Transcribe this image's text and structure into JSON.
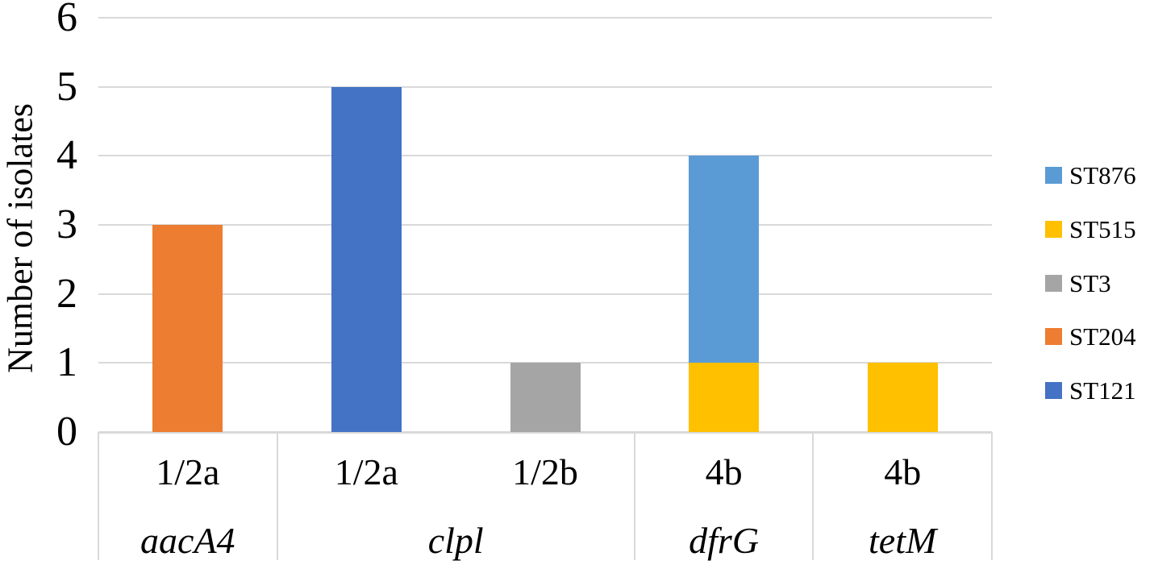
{
  "chart_data": {
    "type": "bar",
    "stacked": true,
    "title": "",
    "xlabel": "",
    "ylabel": "Number of isolates",
    "ylim": [
      0,
      6
    ],
    "yticks": [
      "0",
      "1",
      "2",
      "3",
      "4",
      "5",
      "6"
    ],
    "grid": "horizontal",
    "gridline_color": "#D9D9D9",
    "legend_position": "right",
    "categories_level1_serotype": [
      "1/2a",
      "1/2a",
      "1/2b",
      "4b",
      "4b"
    ],
    "categories_level2_gene": [
      "aacA4",
      "clpl",
      "clpl",
      "dfrG",
      "tetM"
    ],
    "groups": [
      {
        "serotype": "1/2a",
        "gene": "aacA4",
        "segments": [
          {
            "series": "ST204",
            "value": 3
          }
        ],
        "total": 3
      },
      {
        "serotype": "1/2a",
        "gene": "clpl",
        "segments": [
          {
            "series": "ST121",
            "value": 5
          }
        ],
        "total": 5
      },
      {
        "serotype": "1/2b",
        "gene": "clpl",
        "segments": [
          {
            "series": "ST3",
            "value": 1
          }
        ],
        "total": 1
      },
      {
        "serotype": "4b",
        "gene": "dfrG",
        "segments": [
          {
            "series": "ST515",
            "value": 1
          },
          {
            "series": "ST876",
            "value": 3
          }
        ],
        "total": 4
      },
      {
        "serotype": "4b",
        "gene": "tetM",
        "segments": [
          {
            "series": "ST515",
            "value": 1
          }
        ],
        "total": 1
      }
    ],
    "gene_spans": [
      {
        "gene": "aacA4",
        "start": 0,
        "count": 1
      },
      {
        "gene": "clpl",
        "start": 1,
        "count": 2
      },
      {
        "gene": "dfrG",
        "start": 3,
        "count": 1
      },
      {
        "gene": "tetM",
        "start": 4,
        "count": 1
      }
    ],
    "series_colors": {
      "ST876": "#5B9BD5",
      "ST515": "#FFC000",
      "ST3": "#A5A5A5",
      "ST204": "#ED7D31",
      "ST121": "#4472C4"
    },
    "legend": [
      {
        "label": "ST876",
        "color": "#5B9BD5"
      },
      {
        "label": "ST515",
        "color": "#FFC000"
      },
      {
        "label": "ST3",
        "color": "#A5A5A5"
      },
      {
        "label": "ST204",
        "color": "#ED7D31"
      },
      {
        "label": "ST121",
        "color": "#4472C4"
      }
    ]
  }
}
